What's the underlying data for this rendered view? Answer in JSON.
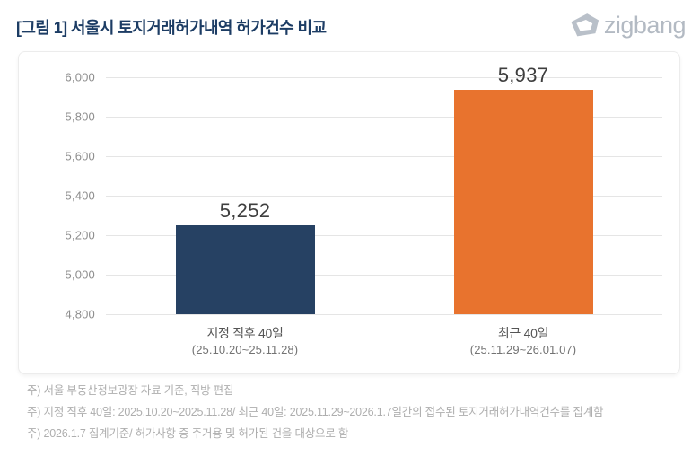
{
  "header": {
    "title": "[그림 1] 서울시 토지거래허가내역 허가건수 비교",
    "title_color": "#1c3c64",
    "logo_text": "zigbang",
    "logo_color": "#b3bac3"
  },
  "chart_data": {
    "type": "bar",
    "title": "",
    "xlabel": "",
    "ylabel": "",
    "categories": [
      "지정 직후 40일",
      "최근 40일"
    ],
    "category_sublabels": [
      "(25.10.20~25.11.28)",
      "(25.11.29~26.01.07)"
    ],
    "values": [
      5252,
      5937
    ],
    "value_labels": [
      "5,252",
      "5,937"
    ],
    "bar_colors": [
      "#264163",
      "#e8732e"
    ],
    "ylim": [
      4800,
      6000
    ],
    "ytick_step": 200,
    "ytick_labels": [
      "4,800",
      "5,000",
      "5,200",
      "5,400",
      "5,600",
      "5,800",
      "6,000"
    ],
    "grid": true,
    "gridline_color": "#e5e5e5",
    "legend": "none"
  },
  "footnotes": [
    "주) 서울 부동산정보광장 자료 기준, 직방 편집",
    "주) 지정 직후 40일: 2025.10.20~2025.11.28/ 최근 40일: 2025.11.29~2026.1.7일간의 접수된 토지거래허가내역건수를 집계함",
    "주) 2026.1.7 집계기준/ 허가사항 중 주거용 및 허가된 건을 대상으로 함"
  ]
}
